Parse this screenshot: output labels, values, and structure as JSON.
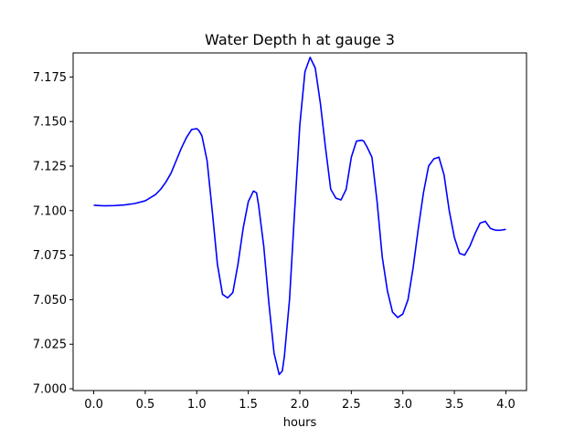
{
  "chart_data": {
    "type": "line",
    "title": "Water Depth h at gauge 3",
    "xlabel": "hours",
    "ylabel": "",
    "xlim": [
      -0.2,
      4.2
    ],
    "ylim": [
      6.999,
      7.1885
    ],
    "xticks": [
      0.0,
      0.5,
      1.0,
      1.5,
      2.0,
      2.5,
      3.0,
      3.5,
      4.0
    ],
    "xtick_labels": [
      "0.0",
      "0.5",
      "1.0",
      "1.5",
      "2.0",
      "2.5",
      "3.0",
      "3.5",
      "4.0"
    ],
    "yticks": [
      7.0,
      7.025,
      7.05,
      7.075,
      7.1,
      7.125,
      7.15,
      7.175
    ],
    "ytick_labels": [
      "7.000",
      "7.025",
      "7.050",
      "7.075",
      "7.100",
      "7.125",
      "7.150",
      "7.175"
    ],
    "grid": false,
    "series": [
      {
        "color": "#0000ff",
        "x": [
          0.0,
          0.1,
          0.2,
          0.3,
          0.4,
          0.5,
          0.6,
          0.65,
          0.7,
          0.75,
          0.8,
          0.85,
          0.9,
          0.95,
          1.0,
          1.02,
          1.05,
          1.1,
          1.15,
          1.2,
          1.25,
          1.3,
          1.35,
          1.4,
          1.45,
          1.5,
          1.55,
          1.58,
          1.6,
          1.65,
          1.7,
          1.75,
          1.8,
          1.83,
          1.85,
          1.9,
          1.95,
          2.0,
          2.05,
          2.1,
          2.15,
          2.2,
          2.25,
          2.3,
          2.35,
          2.4,
          2.45,
          2.5,
          2.55,
          2.6,
          2.62,
          2.65,
          2.7,
          2.75,
          2.8,
          2.85,
          2.9,
          2.95,
          3.0,
          3.05,
          3.1,
          3.15,
          3.2,
          3.25,
          3.3,
          3.35,
          3.4,
          3.45,
          3.5,
          3.55,
          3.6,
          3.65,
          3.7,
          3.75,
          3.8,
          3.85,
          3.9,
          3.95,
          4.0
        ],
        "y": [
          7.103,
          7.1027,
          7.1028,
          7.1032,
          7.104,
          7.1055,
          7.109,
          7.112,
          7.116,
          7.121,
          7.128,
          7.135,
          7.141,
          7.1455,
          7.146,
          7.145,
          7.142,
          7.128,
          7.1,
          7.07,
          7.053,
          7.051,
          7.054,
          7.07,
          7.09,
          7.105,
          7.111,
          7.11,
          7.103,
          7.08,
          7.048,
          7.02,
          7.008,
          7.01,
          7.018,
          7.05,
          7.1,
          7.148,
          7.178,
          7.186,
          7.18,
          7.16,
          7.135,
          7.112,
          7.107,
          7.106,
          7.112,
          7.13,
          7.139,
          7.1395,
          7.139,
          7.136,
          7.13,
          7.105,
          7.074,
          7.055,
          7.043,
          7.04,
          7.042,
          7.05,
          7.068,
          7.09,
          7.11,
          7.125,
          7.129,
          7.13,
          7.12,
          7.1,
          7.085,
          7.076,
          7.075,
          7.08,
          7.087,
          7.093,
          7.094,
          7.09,
          7.089,
          7.089,
          7.0895
        ]
      }
    ]
  }
}
